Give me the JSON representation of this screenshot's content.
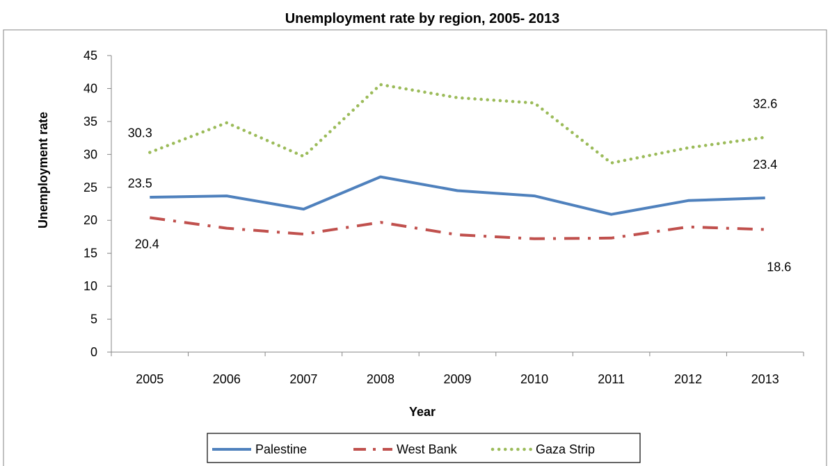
{
  "chart_data": {
    "type": "line",
    "title": "Unemployment rate by region, 2005- 2013",
    "xlabel": "Year",
    "ylabel": "Unemployment  rate",
    "categories": [
      "2005",
      "2006",
      "2007",
      "2008",
      "2009",
      "2010",
      "2011",
      "2012",
      "2013"
    ],
    "ylim": [
      0,
      45
    ],
    "yticks": [
      0,
      5,
      10,
      15,
      20,
      25,
      30,
      35,
      40,
      45
    ],
    "grid": false,
    "legend_position": "bottom",
    "series": [
      {
        "name": "Palestine",
        "color": "#4F81BD",
        "style": "solid",
        "values": [
          23.5,
          23.7,
          21.7,
          26.6,
          24.5,
          23.7,
          20.9,
          23.0,
          23.4
        ]
      },
      {
        "name": "West Bank",
        "color": "#C0504D",
        "style": "dash-dot",
        "values": [
          20.4,
          18.8,
          17.9,
          19.7,
          17.8,
          17.2,
          17.3,
          19.0,
          18.6
        ]
      },
      {
        "name": "Gaza Strip",
        "color": "#9BBB59",
        "style": "dotted",
        "values": [
          30.3,
          34.8,
          29.7,
          40.6,
          38.6,
          37.8,
          28.7,
          31.0,
          32.6
        ]
      }
    ],
    "data_labels": [
      {
        "series": 2,
        "index": 0,
        "text": "30.3"
      },
      {
        "series": 0,
        "index": 0,
        "text": "23.5"
      },
      {
        "series": 1,
        "index": 0,
        "text": "20.4"
      },
      {
        "series": 2,
        "index": 8,
        "text": "32.6"
      },
      {
        "series": 0,
        "index": 8,
        "text": "23.4"
      },
      {
        "series": 1,
        "index": 8,
        "text": "18.6"
      }
    ]
  }
}
